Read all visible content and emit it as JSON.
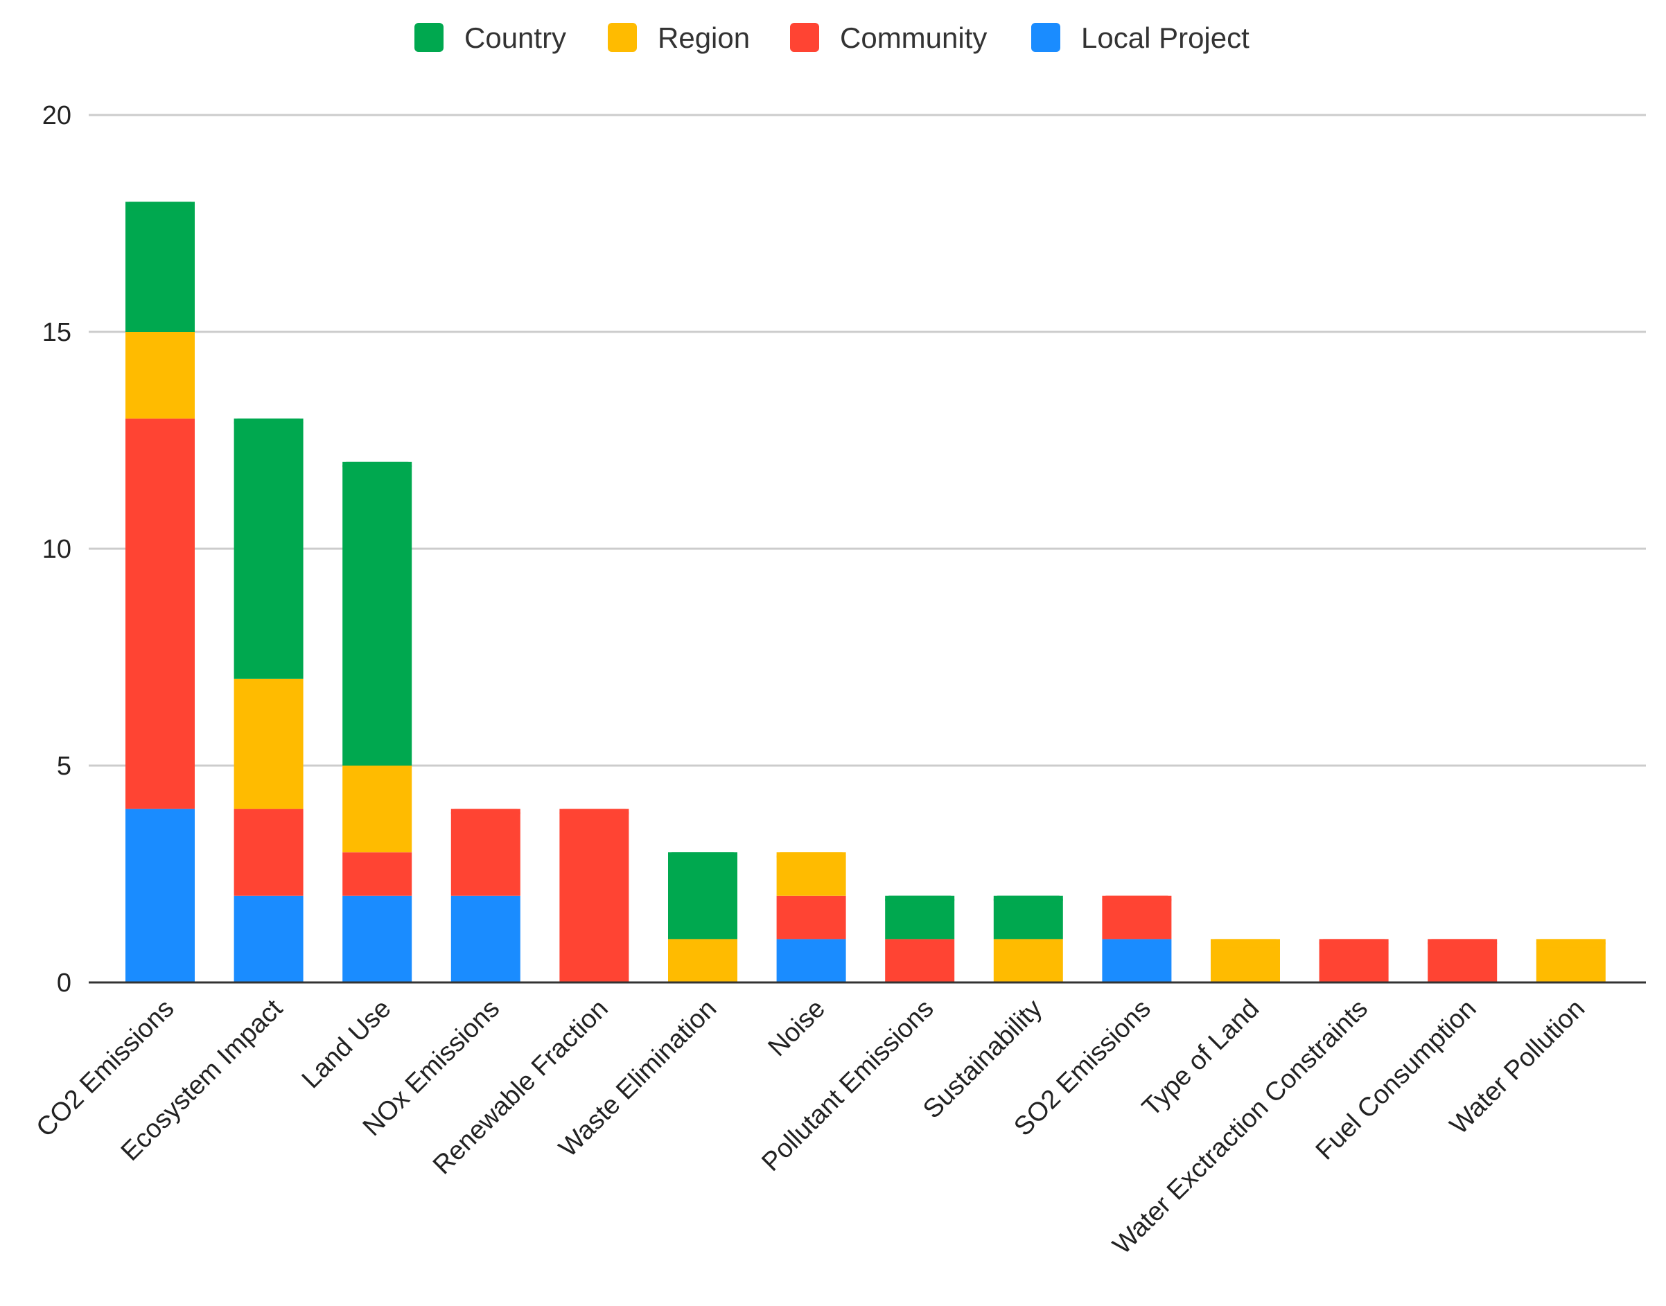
{
  "chart_data": {
    "type": "bar",
    "stacked": true,
    "title": "",
    "xlabel": "",
    "ylabel": "",
    "ylim": [
      0,
      20
    ],
    "yticks": [
      0,
      5,
      10,
      15,
      20
    ],
    "grid": true,
    "legend_position": "top-center",
    "categories": [
      "CO2 Emissions",
      "Ecosystem Impact",
      "Land Use",
      "NOx Emissions",
      "Renewable Fraction",
      "Waste Elimination",
      "Noise",
      "Pollutant Emissions",
      "Sustainability",
      "SO2 Emissions",
      "Type of Land",
      "Water Exctraction Constraints",
      "Fuel Consumption",
      "Water Pollution"
    ],
    "legend_order": [
      "Country",
      "Region",
      "Community",
      "Local Project"
    ],
    "series": [
      {
        "name": "Local Project",
        "color": "#1a8cff",
        "values": [
          4,
          2,
          2,
          2,
          0,
          0,
          1,
          0,
          0,
          1,
          0,
          0,
          0,
          0
        ]
      },
      {
        "name": "Community",
        "color": "#ff4433",
        "values": [
          9,
          2,
          1,
          2,
          4,
          0,
          1,
          1,
          0,
          1,
          0,
          1,
          1,
          0
        ]
      },
      {
        "name": "Region",
        "color": "#ffbb00",
        "values": [
          2,
          3,
          2,
          0,
          0,
          1,
          1,
          0,
          1,
          0,
          1,
          0,
          0,
          1
        ]
      },
      {
        "name": "Country",
        "color": "#00a84f",
        "values": [
          3,
          6,
          7,
          0,
          0,
          2,
          0,
          1,
          1,
          0,
          0,
          0,
          0,
          0
        ]
      }
    ]
  }
}
